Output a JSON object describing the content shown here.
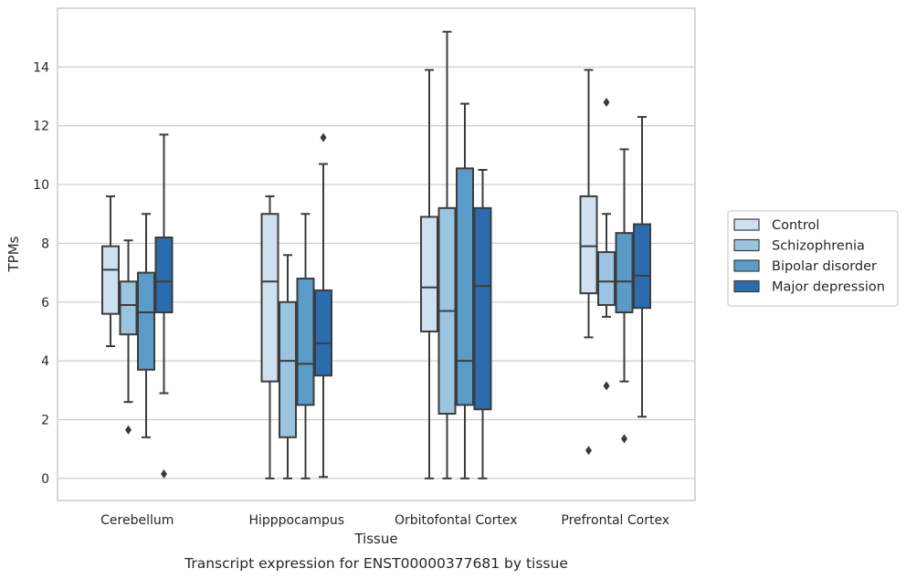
{
  "chart_data": {
    "type": "box",
    "caption": "Transcript expression for ENST00000377681 by tissue",
    "xlabel": "Tissue",
    "ylabel": "TPMs",
    "ylim": [
      -0.75,
      16.0
    ],
    "yticks": [
      0,
      2,
      4,
      6,
      8,
      10,
      12,
      14
    ],
    "grid": "horizontal",
    "legend_position": "right",
    "categories": [
      "Cerebellum",
      "Hipppocampus",
      "Orbitofontal Cortex",
      "Prefrontal Cortex"
    ],
    "series": [
      {
        "name": "Control",
        "color": "#cfe0f0",
        "boxes": [
          {
            "whislo": 4.5,
            "q1": 5.6,
            "med": 7.1,
            "q3": 7.9,
            "whishi": 9.6,
            "fliers": []
          },
          {
            "whislo": 0.0,
            "q1": 3.3,
            "med": 6.7,
            "q3": 9.0,
            "whishi": 9.6,
            "fliers": []
          },
          {
            "whislo": 0.0,
            "q1": 5.0,
            "med": 6.5,
            "q3": 8.9,
            "whishi": 13.9,
            "fliers": []
          },
          {
            "whislo": 4.8,
            "q1": 6.3,
            "med": 7.9,
            "q3": 9.6,
            "whishi": 13.9,
            "fliers": [
              0.95
            ]
          }
        ]
      },
      {
        "name": "Schizophrenia",
        "color": "#9ac4df",
        "boxes": [
          {
            "whislo": 2.6,
            "q1": 4.9,
            "med": 5.9,
            "q3": 6.7,
            "whishi": 8.1,
            "fliers": [
              1.65
            ]
          },
          {
            "whislo": 0.0,
            "q1": 1.4,
            "med": 4.0,
            "q3": 6.0,
            "whishi": 7.6,
            "fliers": []
          },
          {
            "whislo": 0.0,
            "q1": 2.2,
            "med": 5.7,
            "q3": 9.2,
            "whishi": 15.2,
            "fliers": []
          },
          {
            "whislo": 5.5,
            "q1": 5.9,
            "med": 6.7,
            "q3": 7.7,
            "whishi": 9.0,
            "fliers": [
              12.8,
              3.15
            ]
          }
        ]
      },
      {
        "name": "Bipolar disorder",
        "color": "#5a9bc8",
        "boxes": [
          {
            "whislo": 1.4,
            "q1": 3.7,
            "med": 5.65,
            "q3": 7.0,
            "whishi": 9.0,
            "fliers": []
          },
          {
            "whislo": 0.0,
            "q1": 2.5,
            "med": 3.9,
            "q3": 6.8,
            "whishi": 9.0,
            "fliers": []
          },
          {
            "whislo": 0.0,
            "q1": 2.5,
            "med": 4.0,
            "q3": 10.55,
            "whishi": 12.75,
            "fliers": []
          },
          {
            "whislo": 3.3,
            "q1": 5.65,
            "med": 6.7,
            "q3": 8.35,
            "whishi": 11.2,
            "fliers": [
              1.35
            ]
          }
        ]
      },
      {
        "name": "Major depression",
        "color": "#2b6cae",
        "boxes": [
          {
            "whislo": 2.9,
            "q1": 5.65,
            "med": 6.7,
            "q3": 8.2,
            "whishi": 11.7,
            "fliers": [
              0.15
            ]
          },
          {
            "whislo": 0.05,
            "q1": 3.5,
            "med": 4.6,
            "q3": 6.4,
            "whishi": 10.7,
            "fliers": [
              11.6
            ]
          },
          {
            "whislo": 0.0,
            "q1": 2.35,
            "med": 6.55,
            "q3": 9.2,
            "whishi": 10.5,
            "fliers": []
          },
          {
            "whislo": 2.1,
            "q1": 5.8,
            "med": 6.9,
            "q3": 8.65,
            "whishi": 12.3,
            "fliers": []
          }
        ]
      }
    ]
  }
}
